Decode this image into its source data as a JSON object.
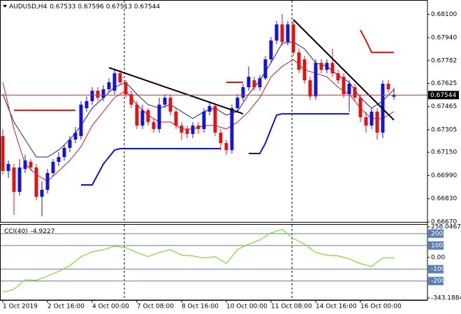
{
  "chart_data": {
    "type": "candlestick",
    "symbol": "AUDUSD,H4",
    "categories": [
      "1 Oct 2019",
      null,
      null,
      null,
      null,
      null,
      null,
      null,
      "2 Oct 16:00",
      null,
      null,
      null,
      null,
      null,
      null,
      null,
      "4 Oct 00:00",
      null,
      null,
      null,
      null,
      null,
      null,
      null,
      "7 Oct 08:00",
      null,
      null,
      null,
      null,
      null,
      null,
      null,
      "8 Oct 16:00",
      null,
      null,
      null,
      null,
      null,
      null,
      null,
      "10 Oct 00:00",
      null,
      null,
      null,
      null,
      null,
      null,
      null,
      "11 Oct 08:00",
      null,
      null,
      null,
      null,
      null,
      null,
      null,
      "14 Oct 16:00",
      null,
      null,
      null,
      null,
      null,
      null,
      null,
      "16 Oct 00:00",
      null,
      null,
      null,
      null,
      null,
      null
    ],
    "open": [
      0.67261,
      0.67021,
      0.67045,
      0.66877,
      0.67035,
      0.67084,
      0.67045,
      0.66843,
      0.66891,
      0.67007,
      0.67084,
      0.67117,
      0.6718,
      0.67237,
      0.67261,
      0.67454,
      0.67502,
      0.67574,
      0.67526,
      0.67584,
      0.67574,
      0.67694,
      0.67632,
      0.6755,
      0.67478,
      0.67334,
      0.67439,
      0.67358,
      0.6731,
      0.67478,
      0.67526,
      0.6743,
      0.67334,
      0.6731,
      0.67276,
      0.67334,
      0.6731,
      0.6743,
      0.67468,
      0.67285,
      0.67213,
      0.67165,
      0.67454,
      0.67526,
      0.67598,
      0.67646,
      0.67598,
      0.6766,
      0.6779,
      0.6792,
      0.68031,
      0.6791,
      0.68031,
      0.67838,
      0.6779,
      0.67646,
      0.67535,
      0.67766,
      0.67718,
      0.67766,
      0.67694,
      0.6767,
      0.6755,
      0.67598,
      0.67526,
      0.67391,
      0.67334,
      0.6743,
      0.67285,
      0.67622,
      0.67533
    ],
    "high": [
      0.6731,
      0.67093,
      0.67069,
      0.67103,
      0.67132,
      0.67103,
      0.67069,
      0.66949,
      0.67035,
      0.67103,
      0.67151,
      0.67199,
      0.67261,
      0.67324,
      0.67502,
      0.67535,
      0.67598,
      0.67598,
      0.67612,
      0.6766,
      0.67728,
      0.67718,
      0.67646,
      0.67574,
      0.67502,
      0.67478,
      0.67454,
      0.67382,
      0.67526,
      0.6755,
      0.6755,
      0.67454,
      0.67358,
      0.67334,
      0.67358,
      0.67358,
      0.67454,
      0.67502,
      0.67487,
      0.6731,
      0.67237,
      0.67478,
      0.6755,
      0.67622,
      0.67742,
      0.6767,
      0.6768,
      0.67814,
      0.67944,
      0.68055,
      0.68103,
      0.68055,
      0.68055,
      0.67862,
      0.67814,
      0.6767,
      0.6779,
      0.6779,
      0.6779,
      0.67862,
      0.67718,
      0.67694,
      0.67646,
      0.67622,
      0.6755,
      0.6743,
      0.67454,
      0.67454,
      0.67646,
      0.67646,
      0.67596
    ],
    "low": [
      0.66997,
      0.66973,
      0.66718,
      0.66853,
      0.67007,
      0.67021,
      0.66819,
      0.66708,
      0.66867,
      0.66987,
      0.67055,
      0.67093,
      0.67151,
      0.67213,
      0.67237,
      0.6743,
      0.67478,
      0.67502,
      0.67502,
      0.6756,
      0.6755,
      0.67612,
      0.67526,
      0.67454,
      0.6731,
      0.6731,
      0.67334,
      0.67285,
      0.67285,
      0.67454,
      0.67406,
      0.6731,
      0.67237,
      0.67247,
      0.67247,
      0.67276,
      0.67285,
      0.67406,
      0.67261,
      0.67165,
      0.67132,
      0.67141,
      0.6743,
      0.67502,
      0.67574,
      0.67574,
      0.67574,
      0.67646,
      0.67766,
      0.67896,
      0.67886,
      0.67886,
      0.67814,
      0.67694,
      0.67622,
      0.67511,
      0.67511,
      0.67694,
      0.67694,
      0.6767,
      0.67622,
      0.67526,
      0.6743,
      0.67502,
      0.67358,
      0.67285,
      0.6731,
      0.67237,
      0.67247,
      0.6756,
      0.67513
    ],
    "close": [
      0.67021,
      0.67069,
      0.66877,
      0.67045,
      0.67093,
      0.67045,
      0.66843,
      0.66891,
      0.67007,
      0.67084,
      0.67117,
      0.6718,
      0.67237,
      0.67285,
      0.67478,
      0.67502,
      0.67574,
      0.67526,
      0.67584,
      0.67632,
      0.67694,
      0.67632,
      0.6755,
      0.67478,
      0.67334,
      0.67439,
      0.67358,
      0.6731,
      0.67478,
      0.67526,
      0.6743,
      0.67334,
      0.67285,
      0.67276,
      0.67334,
      0.6731,
      0.6743,
      0.67468,
      0.67285,
      0.67213,
      0.67165,
      0.67454,
      0.67526,
      0.67598,
      0.6767,
      0.67598,
      0.6766,
      0.6779,
      0.6792,
      0.68031,
      0.6791,
      0.68031,
      0.67838,
      0.67718,
      0.67646,
      0.67535,
      0.67766,
      0.67718,
      0.67766,
      0.67694,
      0.67646,
      0.6755,
      0.67622,
      0.67526,
      0.67391,
      0.67334,
      0.6743,
      0.67285,
      0.67622,
      0.67584,
      0.67544
    ],
    "up_color": "#1414d2",
    "down_color": "#e01414",
    "bid_line_color": "#c83030",
    "ylim": [
      0.6667,
      0.6818
    ],
    "yticks": [
      {
        "value": 0.681,
        "label": "0.68100"
      },
      {
        "value": 0.6794,
        "label": "0.67940"
      },
      0.67782,
      0.67625,
      0.67465,
      0.67305,
      {
        "value": 0.6715,
        "label": "0.67150"
      },
      {
        "value": 0.6699,
        "label": "0.66990"
      },
      {
        "value": 0.6683,
        "label": "0.66830"
      },
      {
        "value": 0.6667,
        "label": "0.66670"
      }
    ],
    "lines": [
      {
        "color": "#1c1c8c",
        "width": 1,
        "x": [
          0,
          2,
          4,
          6,
          8,
          10,
          12,
          14,
          16,
          18,
          20,
          22,
          24,
          26,
          28,
          30,
          32,
          34,
          36,
          38,
          40,
          42,
          44,
          46,
          48,
          50,
          52,
          54,
          56,
          58,
          60,
          62,
          64,
          66,
          68,
          70
        ],
        "values": [
          0.6755,
          0.67358,
          0.67237,
          0.67117,
          0.67117,
          0.67165,
          0.67237,
          0.67334,
          0.67454,
          0.67526,
          0.67598,
          0.67632,
          0.6755,
          0.67478,
          0.67454,
          0.67478,
          0.6743,
          0.67382,
          0.6743,
          0.67454,
          0.67406,
          0.6743,
          0.6755,
          0.67646,
          0.67766,
          0.67901,
          0.6791,
          0.67862,
          0.67766,
          0.67742,
          0.6768,
          0.67632,
          0.67526,
          0.67454,
          0.67502,
          0.67584
        ]
      },
      {
        "color": "#d01818",
        "width": 1,
        "x": [
          0,
          2,
          4,
          6,
          8,
          10,
          12,
          14,
          16,
          18,
          20,
          22,
          24,
          26,
          28,
          30,
          32,
          34,
          36,
          38,
          40,
          42,
          44,
          46,
          48,
          50,
          52,
          54,
          56,
          58,
          60,
          62,
          64,
          66,
          68,
          70
        ],
        "values": [
          0.67632,
          0.6731,
          0.67069,
          0.66997,
          0.66949,
          0.67021,
          0.67093,
          0.67189,
          0.67334,
          0.6743,
          0.67526,
          0.67574,
          0.67478,
          0.67406,
          0.67358,
          0.67358,
          0.6731,
          0.6731,
          0.67334,
          0.67334,
          0.6731,
          0.67358,
          0.6743,
          0.67526,
          0.6767,
          0.67742,
          0.6779,
          0.67718,
          0.67694,
          0.6767,
          0.67598,
          0.6755,
          0.67454,
          0.67382,
          0.67382,
          0.6743
        ]
      },
      {
        "color": "#e01414",
        "width": 2,
        "x": [
          2,
          13,
          null,
          40,
          43,
          null,
          64,
          65,
          66,
          70
        ],
        "values": [
          0.67439,
          0.67439,
          null,
          0.67632,
          0.67632,
          null,
          0.67992,
          0.6792,
          0.67838,
          0.67838
        ]
      },
      {
        "color": "#0a14d8",
        "width": 2,
        "x": [
          14,
          16,
          17,
          18,
          19,
          20,
          21,
          39,
          null,
          44,
          46,
          47,
          48,
          49,
          50,
          62
        ],
        "values": [
          0.66925,
          0.66925,
          0.66997,
          0.67069,
          0.67117,
          0.67165,
          0.67175,
          0.67175,
          null,
          0.67141,
          0.67141,
          0.67213,
          0.6731,
          0.67406,
          0.67415,
          0.67415
        ]
      },
      {
        "color": "#000000",
        "width": 2,
        "x": [
          19,
          43
        ],
        "values": [
          0.67733,
          0.67415
        ]
      },
      {
        "color": "#000000",
        "width": 2,
        "x": [
          52,
          70
        ],
        "values": [
          0.68064,
          0.67372
        ]
      }
    ],
    "cci": {
      "title": "CCI(40)",
      "color": "#7fdc1e",
      "level_color": "#5a7fb4",
      "x": [
        0,
        2,
        4,
        6,
        8,
        10,
        12,
        14,
        16,
        18,
        20,
        22,
        24,
        26,
        28,
        30,
        32,
        34,
        36,
        38,
        40,
        42,
        44,
        46,
        48,
        50,
        52,
        54,
        56,
        58,
        60,
        62,
        64,
        66,
        68,
        70
      ],
      "values": [
        -295,
        -271,
        -189,
        -195,
        -159,
        -118,
        -71,
        6,
        47,
        65,
        94,
        82,
        41,
        6,
        41,
        65,
        18,
        12,
        -6,
        6,
        -53,
        65,
        112,
        147,
        206,
        236,
        159,
        112,
        41,
        18,
        12,
        -12,
        -53,
        -77,
        -6,
        -4.9227
      ],
      "ylim": [
        -343.1884,
        258.0467
      ],
      "yticks": [
        258.0467,
        200,
        100,
        {
          "value": 0,
          "label": "0.00"
        },
        -100,
        -200,
        -343.1884
      ]
    }
  }
}
